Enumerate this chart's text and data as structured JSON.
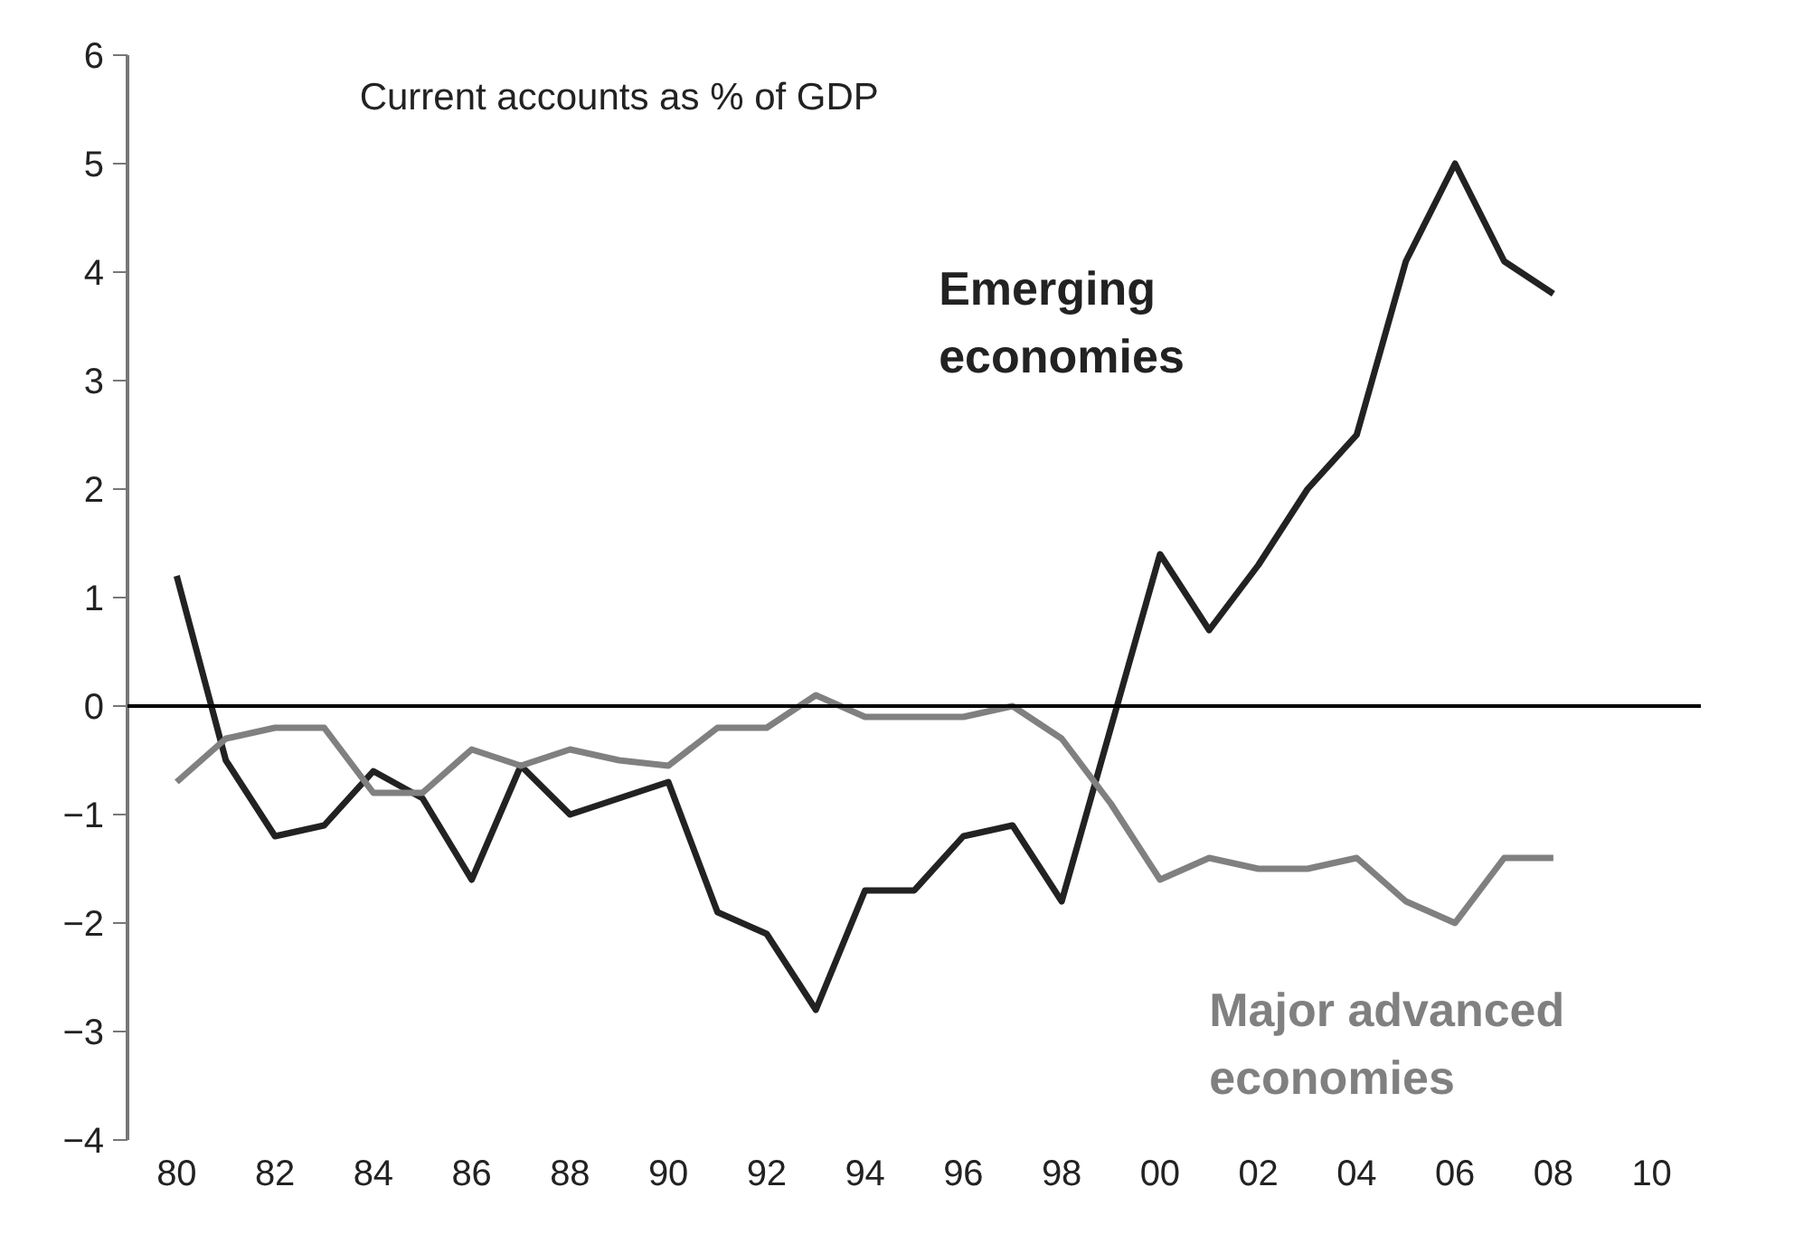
{
  "chart_data": {
    "type": "line",
    "title": "Current accounts as % of GDP",
    "x": [
      1980,
      1981,
      1982,
      1983,
      1984,
      1985,
      1986,
      1987,
      1988,
      1989,
      1990,
      1991,
      1992,
      1993,
      1994,
      1995,
      1996,
      1997,
      1998,
      1999,
      2000,
      2001,
      2002,
      2003,
      2004,
      2005,
      2006,
      2007,
      2008
    ],
    "series": [
      {
        "name": "Emerging economies",
        "color": "#222222",
        "values": [
          1.2,
          -0.5,
          -1.2,
          -1.1,
          -0.6,
          -0.85,
          -1.6,
          -0.55,
          -1.0,
          -0.85,
          -0.7,
          -1.9,
          -2.1,
          -2.8,
          -1.7,
          -1.7,
          -1.2,
          -1.1,
          -1.8,
          -0.2,
          1.4,
          0.7,
          1.3,
          2.0,
          2.5,
          4.1,
          5.0,
          4.1,
          3.8
        ]
      },
      {
        "name": "Major advanced economies",
        "color": "#808080",
        "values": [
          -0.7,
          -0.3,
          -0.2,
          -0.2,
          -0.8,
          -0.8,
          -0.4,
          -0.55,
          -0.4,
          -0.5,
          -0.55,
          -0.2,
          -0.2,
          0.1,
          -0.1,
          -0.1,
          -0.1,
          0.0,
          -0.3,
          -0.9,
          -1.6,
          -1.4,
          -1.5,
          -1.5,
          -1.4,
          -1.8,
          -2.0,
          -1.4,
          -1.4
        ]
      }
    ],
    "xlim": [
      1979,
      2011
    ],
    "ylim": [
      -4,
      6
    ],
    "xticks": [
      {
        "value": 1980,
        "label": "80"
      },
      {
        "value": 1982,
        "label": "82"
      },
      {
        "value": 1984,
        "label": "84"
      },
      {
        "value": 1986,
        "label": "86"
      },
      {
        "value": 1988,
        "label": "88"
      },
      {
        "value": 1990,
        "label": "90"
      },
      {
        "value": 1992,
        "label": "92"
      },
      {
        "value": 1994,
        "label": "94"
      },
      {
        "value": 1996,
        "label": "96"
      },
      {
        "value": 1998,
        "label": "98"
      },
      {
        "value": 2000,
        "label": "00"
      },
      {
        "value": 2002,
        "label": "02"
      },
      {
        "value": 2004,
        "label": "04"
      },
      {
        "value": 2006,
        "label": "06"
      },
      {
        "value": 2008,
        "label": "08"
      },
      {
        "value": 2010,
        "label": "10"
      }
    ],
    "yticks": [
      -4,
      -3,
      -2,
      -1,
      0,
      1,
      2,
      3,
      4,
      5,
      6
    ],
    "ref_lines": [
      {
        "axis": "y",
        "value": 0,
        "color": "#000000"
      }
    ],
    "grid": false,
    "marker": "none",
    "line_style": "solid"
  }
}
